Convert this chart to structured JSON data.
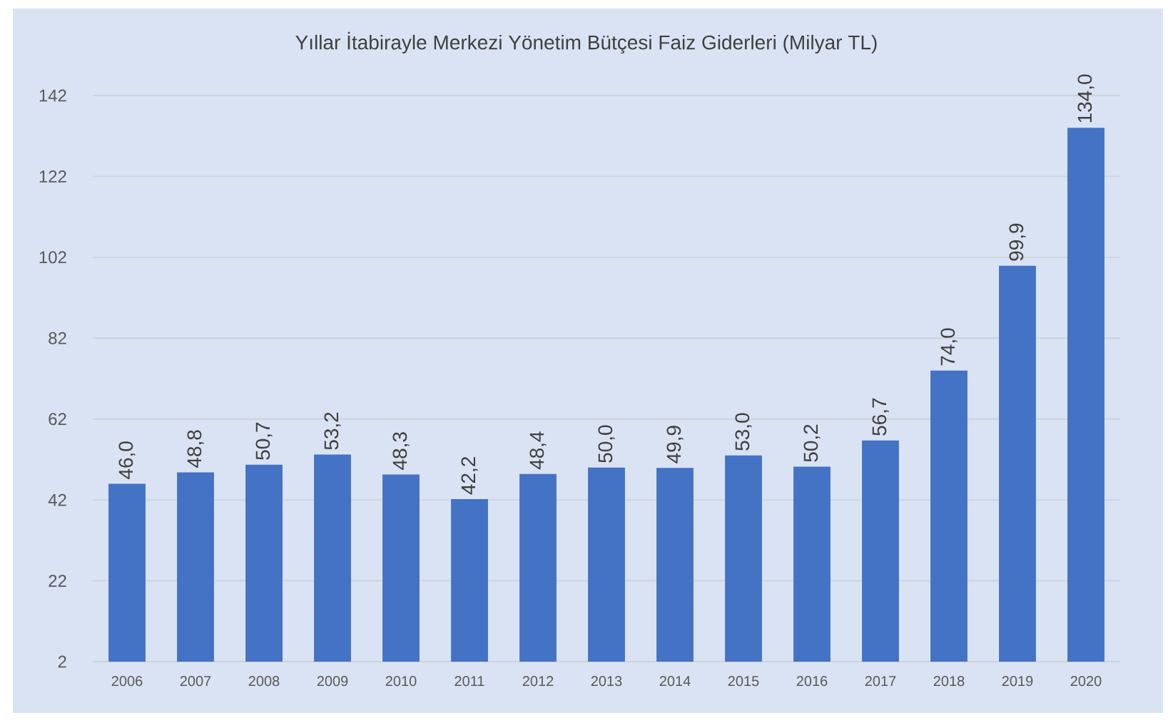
{
  "chart_data": {
    "type": "bar",
    "title": "Yıllar İtabirayle Merkezi Yönetim Bütçesi Faiz Giderleri (Milyar TL)",
    "categories": [
      "2006",
      "2007",
      "2008",
      "2009",
      "2010",
      "2011",
      "2012",
      "2013",
      "2014",
      "2015",
      "2016",
      "2017",
      "2018",
      "2019",
      "2020"
    ],
    "values": [
      46.0,
      48.8,
      50.7,
      53.2,
      48.3,
      42.2,
      48.4,
      50.0,
      49.9,
      53.0,
      50.2,
      56.7,
      74.0,
      99.9,
      134.0
    ],
    "value_labels": [
      "46,0",
      "48,8",
      "50,7",
      "53,2",
      "48,3",
      "42,2",
      "48,4",
      "50,0",
      "49,9",
      "53,0",
      "50,2",
      "56,7",
      "74,0",
      "99,9",
      "134,0"
    ],
    "color": "#4472c4",
    "ylim": [
      2,
      142
    ],
    "yticks": [
      2,
      22,
      42,
      62,
      82,
      102,
      122,
      142
    ],
    "grid": "y"
  }
}
